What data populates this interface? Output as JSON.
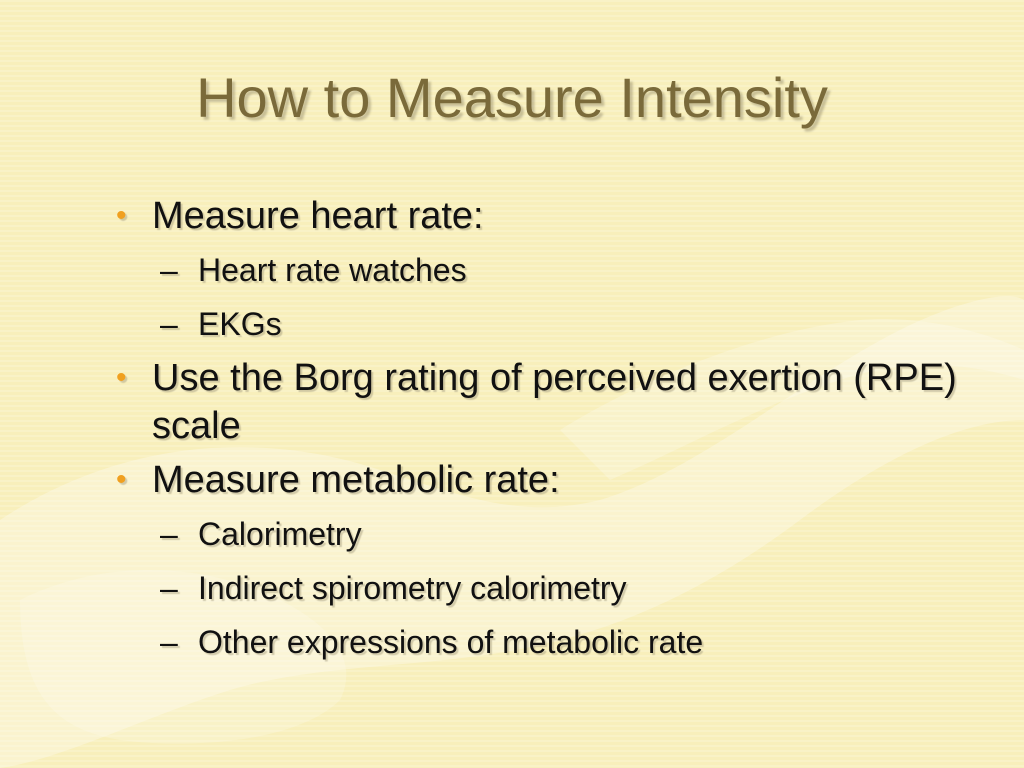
{
  "slide": {
    "title": "How to Measure Intensity",
    "bullets": [
      {
        "text": "Measure heart rate:",
        "sub": [
          "Heart rate watches",
          "EKGs"
        ]
      },
      {
        "text": "Use the Borg rating of perceived exertion (RPE) scale",
        "sub": []
      },
      {
        "text": "Measure metabolic rate:",
        "sub": [
          "Calorimetry",
          "Indirect spirometry calorimetry",
          "Other expressions of metabolic rate"
        ]
      }
    ]
  },
  "colors": {
    "background": "#f8efbb",
    "title": "#7a6a3a",
    "bullet_marker": "#f0a020",
    "body_text": "#111111"
  },
  "icons": {
    "bullet": "•",
    "sub_bullet": "–"
  }
}
